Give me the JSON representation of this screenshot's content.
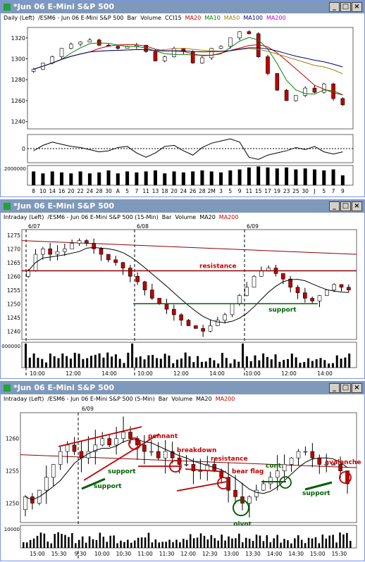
{
  "windows": [
    {
      "title": "*Jun 06  E-Mini S&P 500",
      "header": [
        {
          "text": "Daily  (Left)",
          "color": "#000000"
        },
        {
          "text": "/ESM6 - Jun 06  E-Mini S&P 500",
          "color": "#000000"
        },
        {
          "text": "Bar",
          "color": "#000000"
        },
        {
          "text": "Volume",
          "color": "#000000"
        },
        {
          "text": "CCI15",
          "color": "#000000"
        },
        {
          "text": "MA20",
          "color": "#c00000"
        },
        {
          "text": "MA10",
          "color": "#008000"
        },
        {
          "text": "MA50",
          "color": "#a08000"
        },
        {
          "text": "MA100",
          "color": "#000080"
        },
        {
          "text": "MA200",
          "color": "#c000c0"
        }
      ],
      "y_ticks": [
        "1320",
        "1300",
        "1280",
        "1260",
        "1240"
      ],
      "cci_tick": "0",
      "vol_tick": "2000000",
      "x_ticks": [
        "8",
        "10",
        "14",
        "16",
        "20",
        "22",
        "24",
        "28",
        "30",
        "A",
        "5",
        "7",
        "11",
        "13",
        "18",
        "20",
        "24",
        "26",
        "28",
        "2M",
        "3",
        "5",
        "9",
        "11",
        "15",
        "17",
        "19",
        "23",
        "25",
        "30",
        "J",
        "5",
        "7",
        "9"
      ]
    },
    {
      "title": "*Jun 06  E-Mini S&P 500",
      "header": [
        {
          "text": "Intraday  (Left)",
          "color": "#000000"
        },
        {
          "text": "/ESM6 - Jun 06  E-Mini S&P 500  (15-Min)",
          "color": "#000000"
        },
        {
          "text": "Bar",
          "color": "#000000"
        },
        {
          "text": "Volume",
          "color": "#000000"
        },
        {
          "text": "MA20",
          "color": "#000000"
        },
        {
          "text": "MA200",
          "color": "#c00000"
        }
      ],
      "date_labels": [
        "6/07",
        "6/08",
        "6/09"
      ],
      "y_ticks": [
        "1275",
        "1270",
        "1265",
        "1260",
        "1255",
        "1250",
        "1245",
        "1240"
      ],
      "vol_tick": "000000",
      "x_ticks": [
        "10:00",
        "12:00",
        "14:00",
        "10:00",
        "12:00",
        "14:00",
        "10:00",
        "12:00",
        "14:00"
      ],
      "annotations": [
        {
          "text": "resistance",
          "color": "#c00000"
        },
        {
          "text": "support",
          "color": "#006000"
        }
      ]
    },
    {
      "title": "*Jun 06  E-Mini S&P 500",
      "header": [
        {
          "text": "Intraday  (Left)",
          "color": "#000000"
        },
        {
          "text": "/ESM6 - Jun 06  E-Mini S&P 500  (5-Min)",
          "color": "#000000"
        },
        {
          "text": "Bar",
          "color": "#000000"
        },
        {
          "text": "Volume",
          "color": "#000000"
        },
        {
          "text": "MA20",
          "color": "#000000"
        },
        {
          "text": "MA200",
          "color": "#c00000"
        }
      ],
      "date_labels": [
        "6/09"
      ],
      "y_ticks": [
        "1260",
        "1255",
        "1250"
      ],
      "vol_tick": "10000",
      "x_ticks": [
        "15:00",
        "15:30",
        "9:30",
        "10:00",
        "10:30",
        "11:00",
        "11:30",
        "12:00",
        "12:30",
        "13:00",
        "13:30",
        "14:00",
        "14:30",
        "15:00",
        "15:30"
      ],
      "annotations": [
        {
          "text": "pennant",
          "color": "#c00000"
        },
        {
          "text": "breakdown",
          "color": "#c00000"
        },
        {
          "text": "resistance",
          "color": "#c00000"
        },
        {
          "text": "bear flag",
          "color": "#c00000"
        },
        {
          "text": "cont.",
          "color": "#006000"
        },
        {
          "text": "avalanche",
          "color": "#c00000"
        },
        {
          "text": "support",
          "color": "#006000"
        },
        {
          "text": "support",
          "color": "#006000"
        },
        {
          "text": "pivot",
          "color": "#006000"
        },
        {
          "text": "support",
          "color": "#006000"
        }
      ]
    }
  ],
  "chart_data": [
    {
      "type": "bar",
      "subtype": "ohlc-candlestick",
      "timeframe": "Daily",
      "symbol": "/ESM6",
      "ylim": [
        1233,
        1330
      ],
      "x": [
        "8",
        "10",
        "14",
        "16",
        "20",
        "22",
        "24",
        "28",
        "30",
        "A",
        "5",
        "7",
        "11",
        "13",
        "18",
        "20",
        "24",
        "26",
        "28",
        "2M",
        "3",
        "5",
        "9",
        "11",
        "15",
        "17",
        "19",
        "23",
        "25",
        "30",
        "J",
        "5",
        "7",
        "9"
      ],
      "close": [
        1290,
        1296,
        1302,
        1310,
        1314,
        1316,
        1318,
        1313,
        1312,
        1310,
        1312,
        1313,
        1307,
        1298,
        1302,
        1310,
        1307,
        1296,
        1301,
        1310,
        1312,
        1320,
        1326,
        1324,
        1302,
        1286,
        1270,
        1260,
        1265,
        1272,
        1268,
        1276,
        1262,
        1256
      ],
      "series_names": [
        "MA20",
        "MA10",
        "MA50",
        "MA100",
        "MA200"
      ],
      "cci": [
        -20,
        30,
        60,
        40,
        20,
        10,
        -10,
        -30,
        -20,
        10,
        20,
        -40,
        -80,
        -40,
        20,
        30,
        -20,
        -60,
        10,
        50,
        70,
        90,
        60,
        -80,
        -100,
        -60,
        -40,
        -20,
        10,
        -10,
        20,
        -30,
        -50,
        -30
      ],
      "volume_relative": [
        0.7,
        0.6,
        0.7,
        0.65,
        0.6,
        0.7,
        0.6,
        0.65,
        0.75,
        0.6,
        0.7,
        0.65,
        0.7,
        0.75,
        0.6,
        0.7,
        0.65,
        0.7,
        0.75,
        0.7,
        0.65,
        0.75,
        0.8,
        0.9,
        0.95,
        0.9,
        0.85,
        0.9,
        0.8,
        0.85,
        0.8,
        0.75,
        0.8,
        0.5
      ]
    },
    {
      "type": "bar",
      "subtype": "ohlc-candlestick",
      "timeframe": "15-Min",
      "ylim": [
        1237,
        1277
      ],
      "sessions": [
        "6/07",
        "6/08",
        "6/09"
      ],
      "close": [
        1262,
        1268,
        1270,
        1268,
        1269,
        1270,
        1272,
        1273,
        1272,
        1270,
        1268,
        1266,
        1265,
        1263,
        1260,
        1258,
        1255,
        1252,
        1250,
        1248,
        1246,
        1244,
        1242,
        1241,
        1240,
        1242,
        1244,
        1246,
        1250,
        1253,
        1256,
        1260,
        1262,
        1263,
        1261,
        1259,
        1256,
        1254,
        1252,
        1251,
        1253,
        1255,
        1257,
        1256,
        1255
      ],
      "resistance": 1262,
      "support": 1250,
      "ma200_range": [
        1273,
        1268
      ]
    },
    {
      "type": "bar",
      "subtype": "ohlc-candlestick",
      "timeframe": "5-Min",
      "ylim": [
        1247,
        1264
      ],
      "sessions": [
        "6/09"
      ],
      "close": [
        1251,
        1250,
        1252,
        1254,
        1256,
        1258,
        1259,
        1258,
        1257,
        1258,
        1259,
        1260,
        1259,
        1260,
        1261,
        1260,
        1259,
        1258,
        1258,
        1257,
        1258,
        1257,
        1256,
        1256,
        1255,
        1255,
        1256,
        1255,
        1254,
        1252,
        1251,
        1250,
        1251,
        1252,
        1253,
        1254,
        1255,
        1256,
        1257,
        1258,
        1258,
        1257,
        1256,
        1256,
        1256,
        1255,
        1253
      ]
    }
  ]
}
